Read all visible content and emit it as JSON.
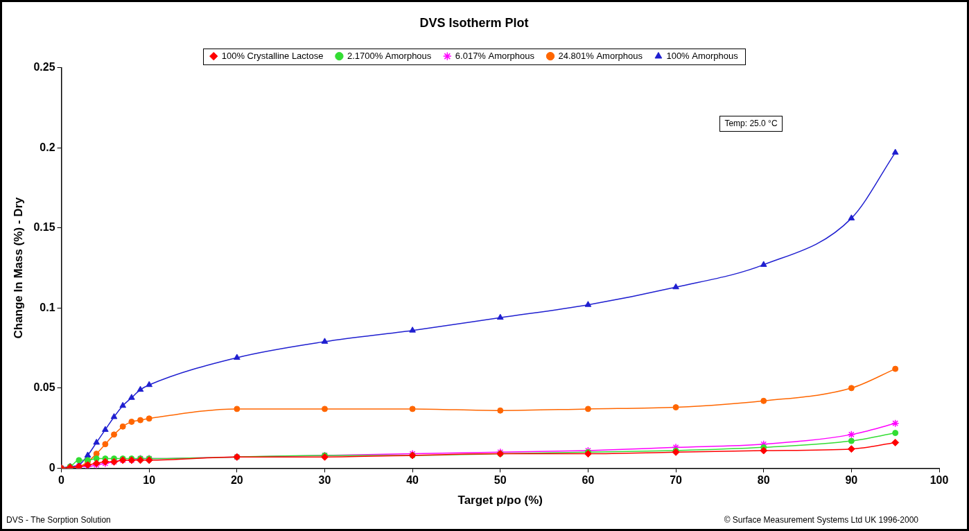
{
  "chart_data": {
    "type": "line",
    "title": "DVS Isotherm Plot",
    "x_label": "Target p/po (%)",
    "y_label": "Change In Mass (%) - Dry",
    "annotations": [
      "Temp: 25.0 °C",
      "DVS - The Sorption Solution",
      "© Surface Measurement Systems Ltd UK 1996-2000"
    ],
    "x": [
      0,
      1,
      2,
      3,
      4,
      5,
      6,
      7,
      8,
      9,
      10,
      20,
      30,
      40,
      50,
      60,
      70,
      80,
      90,
      95
    ],
    "series": [
      {
        "name": "100% Crystalline Lactose",
        "color": "#ff0000",
        "marker": "diamond",
        "values": [
          0,
          0.0005,
          0.001,
          0.002,
          0.003,
          0.004,
          0.004,
          0.005,
          0.005,
          0.005,
          0.005,
          0.007,
          0.007,
          0.008,
          0.009,
          0.009,
          0.01,
          0.011,
          0.012,
          0.016
        ]
      },
      {
        "name": "2.1700% Amorphous",
        "color": "#33dd33",
        "marker": "circle",
        "values": [
          0,
          0.001,
          0.005,
          0.005,
          0.006,
          0.006,
          0.006,
          0.006,
          0.006,
          0.006,
          0.006,
          0.007,
          0.008,
          0.008,
          0.009,
          0.01,
          0.011,
          0.013,
          0.017,
          0.022
        ]
      },
      {
        "name": "6.017% Amorphous",
        "color": "#ff00ff",
        "marker": "star",
        "values": [
          0,
          0.0005,
          0.001,
          0.001,
          0.002,
          0.003,
          0.004,
          0.005,
          0.005,
          0.006,
          0.006,
          0.007,
          0.008,
          0.009,
          0.01,
          0.011,
          0.013,
          0.015,
          0.021,
          0.028
        ]
      },
      {
        "name": "24.801% Amorphous",
        "color": "#ff6600",
        "marker": "circle",
        "values": [
          0,
          0.0005,
          0.001,
          0.004,
          0.009,
          0.015,
          0.021,
          0.026,
          0.029,
          0.03,
          0.031,
          0.037,
          0.037,
          0.037,
          0.036,
          0.037,
          0.038,
          0.042,
          0.05,
          0.062
        ]
      },
      {
        "name": "100% Amorphous",
        "color": "#1f1fd0",
        "marker": "triangle",
        "values": [
          0,
          0.001,
          0.002,
          0.008,
          0.016,
          0.024,
          0.032,
          0.039,
          0.044,
          0.049,
          0.052,
          0.069,
          0.079,
          0.086,
          0.094,
          0.102,
          0.113,
          0.127,
          0.156,
          0.197
        ]
      }
    ],
    "xlim": [
      0,
      100
    ],
    "xticks": [
      0,
      10,
      20,
      30,
      40,
      50,
      60,
      70,
      80,
      90,
      100
    ],
    "ylim": [
      0,
      0.25
    ],
    "yticks": [
      0,
      0.05,
      0.1,
      0.15,
      0.2,
      0.25
    ],
    "grid": false,
    "legend": "top"
  }
}
